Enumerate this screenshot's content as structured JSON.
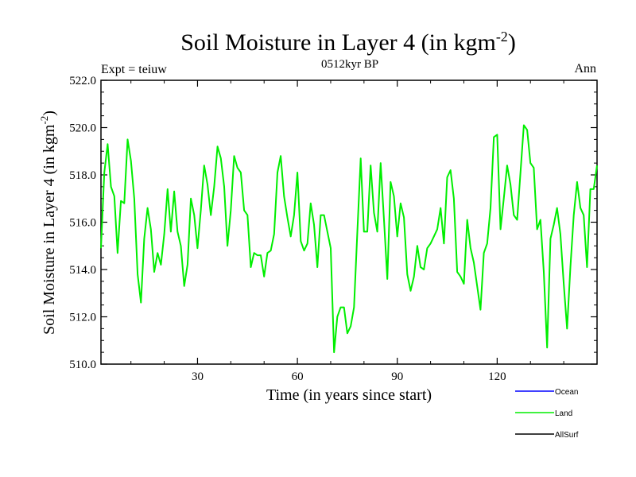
{
  "chart_data": {
    "type": "line",
    "title": "Soil Moisture in Layer 4 (in kgm",
    "title_superscript": "-2",
    "title_close": ")",
    "subtitle": "0512kyr BP",
    "left_label": "Expt = teiuw",
    "right_label": "Ann",
    "xlabel": "Time (in years since start)",
    "ylabel": "Soil Moisture in Layer 4 (in kgm",
    "ylabel_superscript": "-2",
    "ylabel_close": ")",
    "xlim": [
      1,
      150
    ],
    "ylim": [
      510.0,
      522.0
    ],
    "x_ticks": [
      30,
      60,
      90,
      120
    ],
    "x_tick_labels": [
      "30",
      "60",
      "90",
      "120"
    ],
    "y_ticks": [
      510,
      512,
      514,
      516,
      518,
      520,
      522
    ],
    "y_tick_labels": [
      "510.0",
      "512.0",
      "514.0",
      "516.0",
      "518.0",
      "520.0",
      "522.0"
    ],
    "x_start": 1,
    "series": [
      {
        "name": "Ocean",
        "color": "#0000ff",
        "values": []
      },
      {
        "name": "Land",
        "color": "#00ee00",
        "values": [
          514.9,
          518.1,
          519.3,
          517.5,
          517.1,
          514.7,
          516.9,
          516.8,
          519.5,
          518.6,
          517.0,
          513.8,
          512.6,
          515.3,
          516.6,
          515.7,
          513.9,
          514.7,
          514.2,
          515.5,
          517.4,
          515.6,
          517.3,
          515.6,
          515.0,
          513.3,
          514.2,
          517.0,
          516.3,
          514.9,
          516.5,
          518.4,
          517.6,
          516.3,
          517.5,
          519.2,
          518.7,
          517.5,
          515.0,
          516.5,
          518.8,
          518.3,
          518.1,
          516.5,
          516.3,
          514.1,
          514.7,
          514.6,
          514.6,
          513.7,
          514.7,
          514.8,
          515.5,
          518.1,
          518.8,
          517.1,
          516.2,
          515.4,
          516.3,
          518.1,
          515.2,
          514.8,
          515.1,
          516.8,
          515.9,
          514.1,
          516.3,
          516.3,
          515.6,
          514.9,
          510.5,
          512.0,
          512.4,
          512.4,
          511.3,
          511.6,
          512.4,
          515.6,
          518.7,
          515.6,
          515.6,
          518.4,
          516.4,
          515.6,
          518.5,
          516.1,
          513.6,
          517.7,
          517.1,
          515.4,
          516.8,
          516.2,
          513.8,
          513.1,
          513.7,
          515.0,
          514.1,
          514.0,
          514.9,
          515.1,
          515.4,
          515.7,
          516.6,
          515.1,
          517.9,
          518.2,
          517.0,
          513.9,
          513.7,
          513.4,
          516.1,
          514.9,
          514.3,
          513.3,
          512.3,
          514.7,
          515.1,
          516.6,
          519.6,
          519.7,
          515.7,
          517.0,
          518.4,
          517.6,
          516.3,
          516.1,
          518.1,
          520.1,
          519.9,
          518.5,
          518.3,
          515.7,
          516.1,
          513.9,
          510.7,
          515.3,
          515.9,
          516.6,
          515.5,
          513.4,
          511.5,
          514.1,
          516.3,
          517.7,
          516.6,
          516.3,
          514.1,
          517.4,
          517.4,
          518.4
        ]
      },
      {
        "name": "AllSurf",
        "color": "#000000",
        "values": []
      }
    ],
    "legend_location": "bottom-right",
    "grid": false
  }
}
